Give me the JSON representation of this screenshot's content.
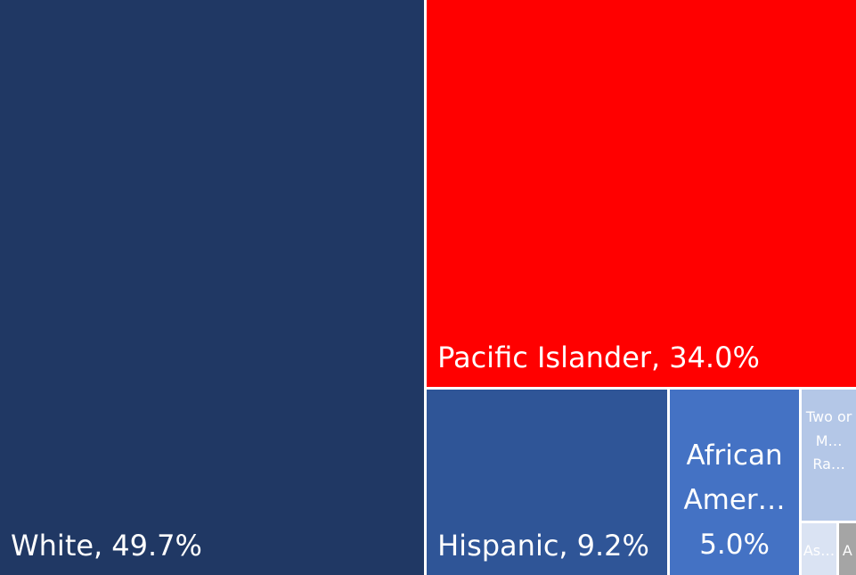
{
  "chart_data": {
    "type": "treemap",
    "categories": [
      "White,",
      "Pacific Islander,",
      "Hispanic,",
      "African Amer…",
      "Two or M… Ra…",
      "As…",
      "A…"
    ],
    "values": [
      49.7,
      34.0,
      9.2,
      5.0,
      1.5,
      0.4,
      0.2
    ],
    "value_labels": [
      "49.7%",
      "34.0%",
      "9.2%",
      "5.0%",
      null,
      null,
      null
    ],
    "colors": [
      "#203864",
      "#ff0000",
      "#2f5597",
      "#4472c4",
      "#b4c7e7",
      "#dae3f3",
      "#a5a5a5"
    ]
  }
}
